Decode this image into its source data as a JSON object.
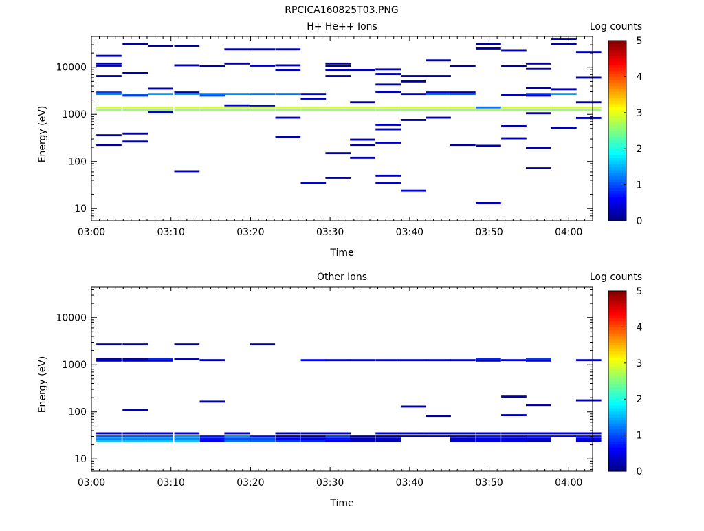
{
  "figure_title": "RPCICA160825T03.PNG",
  "colorbar_title": "Log counts",
  "colorbar_ticks": [
    "0",
    "1",
    "2",
    "3",
    "4",
    "5"
  ],
  "chart_data": [
    {
      "type": "heatmap",
      "title": "H+ He++ Ions",
      "xlabel": "Time",
      "ylabel": "Energy (eV)",
      "x_ticks": [
        "03:00",
        "03:10",
        "03:20",
        "03:30",
        "03:40",
        "03:50",
        "04:00"
      ],
      "x_range_min": [
        0,
        63
      ],
      "y_scale": "log",
      "y_ticks": [
        "10",
        "100",
        "1000",
        "10000"
      ],
      "y_range_eV": [
        5.5,
        45000
      ],
      "color_scale": "log counts 0-5, jet",
      "cells": [
        [
          2.2,
          17500,
          0.2
        ],
        [
          2.2,
          12000,
          0.2
        ],
        [
          2.2,
          10800,
          0.2
        ],
        [
          2.2,
          6500,
          0.2
        ],
        [
          2.2,
          2900,
          0.9
        ],
        [
          2.2,
          2700,
          1.3
        ],
        [
          2.2,
          1400,
          2.9
        ],
        [
          2.2,
          1220,
          2.6
        ],
        [
          2.2,
          360,
          0.2
        ],
        [
          2.2,
          225,
          0.2
        ],
        [
          5.5,
          31000,
          0.2
        ],
        [
          5.5,
          7500,
          0.2
        ],
        [
          5.5,
          2600,
          1.2
        ],
        [
          5.5,
          2500,
          0.9
        ],
        [
          5.5,
          1400,
          2.9
        ],
        [
          5.5,
          1220,
          2.6
        ],
        [
          5.5,
          390,
          0.2
        ],
        [
          5.5,
          265,
          0.2
        ],
        [
          8.7,
          28500,
          0.2
        ],
        [
          8.7,
          3500,
          0.2
        ],
        [
          8.7,
          2700,
          1.4
        ],
        [
          8.7,
          1400,
          2.9
        ],
        [
          8.7,
          1220,
          2.6
        ],
        [
          8.7,
          1100,
          0.3
        ],
        [
          12.0,
          28500,
          0.2
        ],
        [
          12.0,
          11000,
          0.2
        ],
        [
          12.0,
          2900,
          0.3
        ],
        [
          12.0,
          2700,
          1.4
        ],
        [
          12.0,
          1400,
          2.9
        ],
        [
          12.0,
          1220,
          2.6
        ],
        [
          12.0,
          62,
          0.2
        ],
        [
          15.2,
          10500,
          0.2
        ],
        [
          15.2,
          2700,
          1.3
        ],
        [
          15.2,
          2500,
          1.0
        ],
        [
          15.2,
          1400,
          2.9
        ],
        [
          15.2,
          1220,
          2.6
        ],
        [
          18.3,
          24000,
          0.2
        ],
        [
          18.3,
          12000,
          0.2
        ],
        [
          18.3,
          2700,
          1.3
        ],
        [
          18.3,
          1550,
          0.3
        ],
        [
          18.3,
          1400,
          2.9
        ],
        [
          18.3,
          1220,
          2.6
        ],
        [
          21.5,
          24000,
          0.2
        ],
        [
          21.5,
          10800,
          0.2
        ],
        [
          21.5,
          2700,
          1.2
        ],
        [
          21.5,
          1500,
          0.3
        ],
        [
          21.5,
          1400,
          2.9
        ],
        [
          21.5,
          1220,
          2.6
        ],
        [
          24.7,
          24000,
          0.2
        ],
        [
          24.7,
          11000,
          0.2
        ],
        [
          24.7,
          8800,
          0.2
        ],
        [
          24.7,
          2700,
          1.2
        ],
        [
          24.7,
          1400,
          2.9
        ],
        [
          24.7,
          1220,
          2.6
        ],
        [
          24.7,
          850,
          0.2
        ],
        [
          24.7,
          330,
          0.2
        ],
        [
          27.9,
          2700,
          0.4
        ],
        [
          27.9,
          2150,
          0.2
        ],
        [
          27.9,
          1400,
          2.9
        ],
        [
          27.9,
          1220,
          2.6
        ],
        [
          27.9,
          35,
          0.4
        ],
        [
          31.0,
          12000,
          0.2
        ],
        [
          31.0,
          10500,
          0.2
        ],
        [
          31.0,
          8800,
          0.2
        ],
        [
          31.0,
          6500,
          0.2
        ],
        [
          31.0,
          1400,
          2.9
        ],
        [
          31.0,
          1220,
          2.6
        ],
        [
          31.0,
          150,
          0.2
        ],
        [
          31.0,
          45,
          0.2
        ],
        [
          34.1,
          8800,
          0.2
        ],
        [
          34.1,
          1800,
          0.2
        ],
        [
          34.1,
          1400,
          2.9
        ],
        [
          34.1,
          1220,
          2.6
        ],
        [
          34.1,
          290,
          0.2
        ],
        [
          34.1,
          225,
          0.2
        ],
        [
          34.1,
          120,
          0.2
        ],
        [
          37.3,
          9000,
          0.2
        ],
        [
          37.3,
          7200,
          0.2
        ],
        [
          37.3,
          4300,
          0.2
        ],
        [
          37.3,
          3000,
          0.2
        ],
        [
          37.3,
          1400,
          2.9
        ],
        [
          37.3,
          1220,
          2.6
        ],
        [
          37.3,
          600,
          0.2
        ],
        [
          37.3,
          480,
          0.2
        ],
        [
          37.3,
          250,
          0.2
        ],
        [
          37.3,
          50,
          0.2
        ],
        [
          37.3,
          35,
          0.4
        ],
        [
          40.5,
          6500,
          0.2
        ],
        [
          40.5,
          5000,
          0.2
        ],
        [
          40.5,
          2700,
          0.4
        ],
        [
          40.5,
          1400,
          2.9
        ],
        [
          40.5,
          1220,
          2.6
        ],
        [
          40.5,
          760,
          0.2
        ],
        [
          40.5,
          24,
          0.5
        ],
        [
          43.6,
          14000,
          0.2
        ],
        [
          43.6,
          6500,
          0.2
        ],
        [
          43.6,
          2900,
          0.6
        ],
        [
          43.6,
          2700,
          1.2
        ],
        [
          43.6,
          1400,
          2.9
        ],
        [
          43.6,
          1220,
          2.6
        ],
        [
          43.6,
          850,
          0.2
        ],
        [
          46.7,
          10500,
          0.2
        ],
        [
          46.7,
          2900,
          0.3
        ],
        [
          46.7,
          2700,
          1.1
        ],
        [
          46.7,
          1400,
          2.9
        ],
        [
          46.7,
          1220,
          2.6
        ],
        [
          46.7,
          225,
          0.2
        ],
        [
          49.9,
          31000,
          0.2
        ],
        [
          49.9,
          25000,
          0.2
        ],
        [
          49.9,
          1400,
          1.2
        ],
        [
          49.9,
          1220,
          2.6
        ],
        [
          49.9,
          215,
          0.2
        ],
        [
          49.9,
          13,
          0.3
        ],
        [
          53.1,
          23000,
          0.2
        ],
        [
          53.1,
          10500,
          0.2
        ],
        [
          53.1,
          2600,
          0.3
        ],
        [
          53.1,
          1400,
          2.9
        ],
        [
          53.1,
          1220,
          2.6
        ],
        [
          53.1,
          560,
          0.2
        ],
        [
          53.1,
          310,
          0.2
        ],
        [
          56.2,
          12000,
          0.2
        ],
        [
          56.2,
          9200,
          0.2
        ],
        [
          56.2,
          3600,
          0.2
        ],
        [
          56.2,
          2700,
          1.0
        ],
        [
          56.2,
          2500,
          0.4
        ],
        [
          56.2,
          1400,
          2.9
        ],
        [
          56.2,
          1220,
          2.6
        ],
        [
          56.2,
          1050,
          0.2
        ],
        [
          56.2,
          195,
          0.3
        ],
        [
          56.2,
          72,
          0.2
        ],
        [
          59.4,
          40000,
          0.2
        ],
        [
          59.4,
          31000,
          0.2
        ],
        [
          59.4,
          3400,
          0.2
        ],
        [
          59.4,
          2700,
          1.4
        ],
        [
          59.4,
          1400,
          2.9
        ],
        [
          59.4,
          1220,
          2.6
        ],
        [
          59.4,
          520,
          0.2
        ],
        [
          62.5,
          21000,
          0.2
        ],
        [
          62.5,
          6000,
          0.2
        ],
        [
          62.5,
          1800,
          0.2
        ],
        [
          62.5,
          1400,
          2.9
        ],
        [
          62.5,
          1220,
          2.6
        ],
        [
          62.5,
          840,
          0.2
        ]
      ]
    },
    {
      "type": "heatmap",
      "title": "Other Ions",
      "xlabel": "Time",
      "ylabel": "Energy (eV)",
      "x_ticks": [
        "03:00",
        "03:10",
        "03:20",
        "03:30",
        "03:40",
        "03:50",
        "04:00"
      ],
      "x_range_min": [
        0,
        63
      ],
      "y_scale": "log",
      "y_ticks": [
        "10",
        "100",
        "1000",
        "10000"
      ],
      "y_range_eV": [
        5.5,
        45000
      ],
      "color_scale": "log counts 0-5, jet",
      "cells": [
        [
          2.2,
          2700,
          0.2
        ],
        [
          2.2,
          1320,
          0.2
        ],
        [
          2.2,
          1220,
          0.3
        ],
        [
          2.2,
          35,
          0.3
        ],
        [
          2.2,
          30,
          1.0
        ],
        [
          2.2,
          27,
          1.3
        ],
        [
          2.2,
          24,
          1.6
        ],
        [
          5.5,
          2700,
          0.2
        ],
        [
          5.5,
          1320,
          0.2
        ],
        [
          5.5,
          1220,
          0.3
        ],
        [
          5.5,
          110,
          0.2
        ],
        [
          5.5,
          35,
          0.3
        ],
        [
          5.5,
          30,
          1.0
        ],
        [
          5.5,
          27,
          1.3
        ],
        [
          5.5,
          24,
          1.6
        ],
        [
          8.7,
          1320,
          0.8
        ],
        [
          8.7,
          1220,
          0.4
        ],
        [
          8.7,
          35,
          0.4
        ],
        [
          8.7,
          30,
          1.0
        ],
        [
          8.7,
          27,
          1.3
        ],
        [
          8.7,
          24,
          1.6
        ],
        [
          12.0,
          2700,
          0.2
        ],
        [
          12.0,
          1320,
          0.3
        ],
        [
          12.0,
          35,
          0.4
        ],
        [
          12.0,
          30,
          1.3
        ],
        [
          12.0,
          27,
          1.3
        ],
        [
          12.0,
          24,
          1.6
        ],
        [
          15.2,
          1250,
          0.2
        ],
        [
          15.2,
          165,
          0.2
        ],
        [
          15.2,
          30,
          0.7
        ],
        [
          15.2,
          27,
          0.7
        ],
        [
          15.2,
          24,
          0.6
        ],
        [
          18.3,
          35,
          0.3
        ],
        [
          18.3,
          30,
          1.3
        ],
        [
          18.3,
          27,
          1.0
        ],
        [
          18.3,
          24,
          1.2
        ],
        [
          21.5,
          2700,
          0.2
        ],
        [
          21.5,
          30,
          0.7
        ],
        [
          21.5,
          27,
          1.0
        ],
        [
          21.5,
          24,
          1.1
        ],
        [
          24.7,
          35,
          0.2
        ],
        [
          24.7,
          30,
          0.2
        ],
        [
          24.7,
          27,
          0.6
        ],
        [
          24.7,
          24,
          0.9
        ],
        [
          27.9,
          1250,
          0.6
        ],
        [
          27.9,
          35,
          0.2
        ],
        [
          27.9,
          30,
          0.2
        ],
        [
          27.9,
          27,
          0.5
        ],
        [
          27.9,
          24,
          0.8
        ],
        [
          31.0,
          1250,
          0.3
        ],
        [
          31.0,
          35,
          0.3
        ],
        [
          31.0,
          30,
          0.9
        ],
        [
          31.0,
          27,
          0.7
        ],
        [
          31.0,
          24,
          0.6
        ],
        [
          34.1,
          1250,
          0.3
        ],
        [
          34.1,
          30,
          0.2
        ],
        [
          34.1,
          27,
          0.3
        ],
        [
          34.1,
          24,
          0.3
        ],
        [
          37.3,
          1250,
          0.3
        ],
        [
          37.3,
          35,
          0.3
        ],
        [
          37.3,
          30,
          0.2
        ],
        [
          37.3,
          27,
          0.4
        ],
        [
          37.3,
          24,
          0.2
        ],
        [
          40.5,
          1250,
          0.3
        ],
        [
          40.5,
          130,
          0.2
        ],
        [
          40.5,
          35,
          0.3
        ],
        [
          40.5,
          30,
          0.3
        ],
        [
          43.6,
          1250,
          0.3
        ],
        [
          43.6,
          82,
          0.2
        ],
        [
          43.6,
          35,
          0.3
        ],
        [
          43.6,
          30,
          0.4
        ],
        [
          46.7,
          1250,
          0.3
        ],
        [
          46.7,
          35,
          0.3
        ],
        [
          46.7,
          30,
          0.3
        ],
        [
          46.7,
          27,
          0.4
        ],
        [
          46.7,
          24,
          0.4
        ],
        [
          49.9,
          1320,
          0.8
        ],
        [
          49.9,
          1220,
          0.3
        ],
        [
          49.9,
          35,
          0.3
        ],
        [
          49.9,
          30,
          0.7
        ],
        [
          49.9,
          27,
          0.5
        ],
        [
          49.9,
          24,
          0.5
        ],
        [
          53.1,
          1250,
          0.4
        ],
        [
          53.1,
          210,
          0.2
        ],
        [
          53.1,
          85,
          0.2
        ],
        [
          53.1,
          35,
          0.3
        ],
        [
          53.1,
          30,
          0.5
        ],
        [
          53.1,
          27,
          0.5
        ],
        [
          53.1,
          24,
          0.5
        ],
        [
          56.2,
          1320,
          0.9
        ],
        [
          56.2,
          1220,
          0.4
        ],
        [
          56.2,
          140,
          0.2
        ],
        [
          56.2,
          35,
          0.4
        ],
        [
          56.2,
          30,
          0.7
        ],
        [
          56.2,
          27,
          0.5
        ],
        [
          56.2,
          24,
          0.2
        ],
        [
          59.4,
          35,
          0.4
        ],
        [
          59.4,
          30,
          0.6
        ],
        [
          62.5,
          1250,
          0.3
        ],
        [
          62.5,
          175,
          0.2
        ],
        [
          62.5,
          35,
          0.3
        ],
        [
          62.5,
          30,
          0.7
        ],
        [
          62.5,
          27,
          0.6
        ],
        [
          62.5,
          24,
          0.3
        ]
      ]
    }
  ]
}
